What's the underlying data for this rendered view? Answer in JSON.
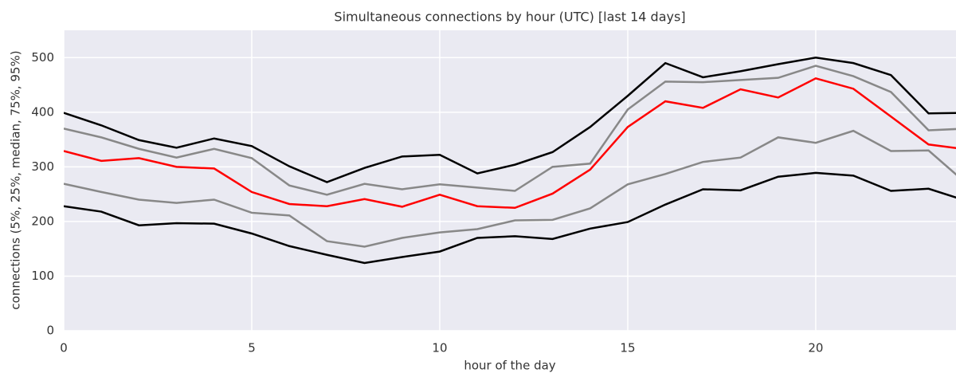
{
  "chart_data": {
    "type": "line",
    "title": "Simultaneous connections by hour (UTC) [last 14 days]",
    "xlabel": "hour of the day",
    "ylabel": "connections (5%, 25%, median, 75%, 95%)",
    "x": [
      0,
      1,
      2,
      3,
      4,
      5,
      6,
      7,
      8,
      9,
      10,
      11,
      12,
      13,
      14,
      15,
      16,
      17,
      18,
      19,
      20,
      21,
      22,
      23,
      24
    ],
    "series": [
      {
        "color": "#000000",
        "values": [
          399,
          376,
          349,
          335,
          352,
          338,
          301,
          272,
          298,
          319,
          322,
          288,
          304,
          327,
          373,
          430,
          490,
          464,
          475,
          488,
          500,
          490,
          468,
          398,
          399
        ]
      },
      {
        "color": "#888888",
        "values": [
          370,
          354,
          333,
          317,
          333,
          316,
          266,
          249,
          269,
          259,
          268,
          262,
          256,
          300,
          306,
          405,
          456,
          455,
          459,
          463,
          485,
          466,
          437,
          367,
          370
        ]
      },
      {
        "color": "#ff0000",
        "values": [
          329,
          311,
          316,
          300,
          297,
          254,
          232,
          228,
          241,
          227,
          249,
          228,
          225,
          251,
          295,
          373,
          420,
          408,
          442,
          427,
          462,
          443,
          392,
          341,
          332
        ]
      },
      {
        "color": "#888888",
        "values": [
          269,
          254,
          240,
          234,
          240,
          216,
          211,
          164,
          154,
          170,
          180,
          186,
          202,
          203,
          224,
          268,
          287,
          309,
          317,
          354,
          344,
          366,
          329,
          330,
          270
        ]
      },
      {
        "color": "#000000",
        "values": [
          228,
          218,
          193,
          197,
          196,
          178,
          155,
          139,
          124,
          135,
          145,
          170,
          173,
          168,
          187,
          199,
          231,
          259,
          257,
          282,
          289,
          284,
          256,
          260,
          238
        ]
      }
    ],
    "xlim": [
      0,
      23.73
    ],
    "ylim": [
      0,
      550
    ],
    "xticks": [
      0,
      5,
      10,
      15,
      20
    ],
    "yticks": [
      0,
      100,
      200,
      300,
      400,
      500
    ],
    "grid": true
  }
}
